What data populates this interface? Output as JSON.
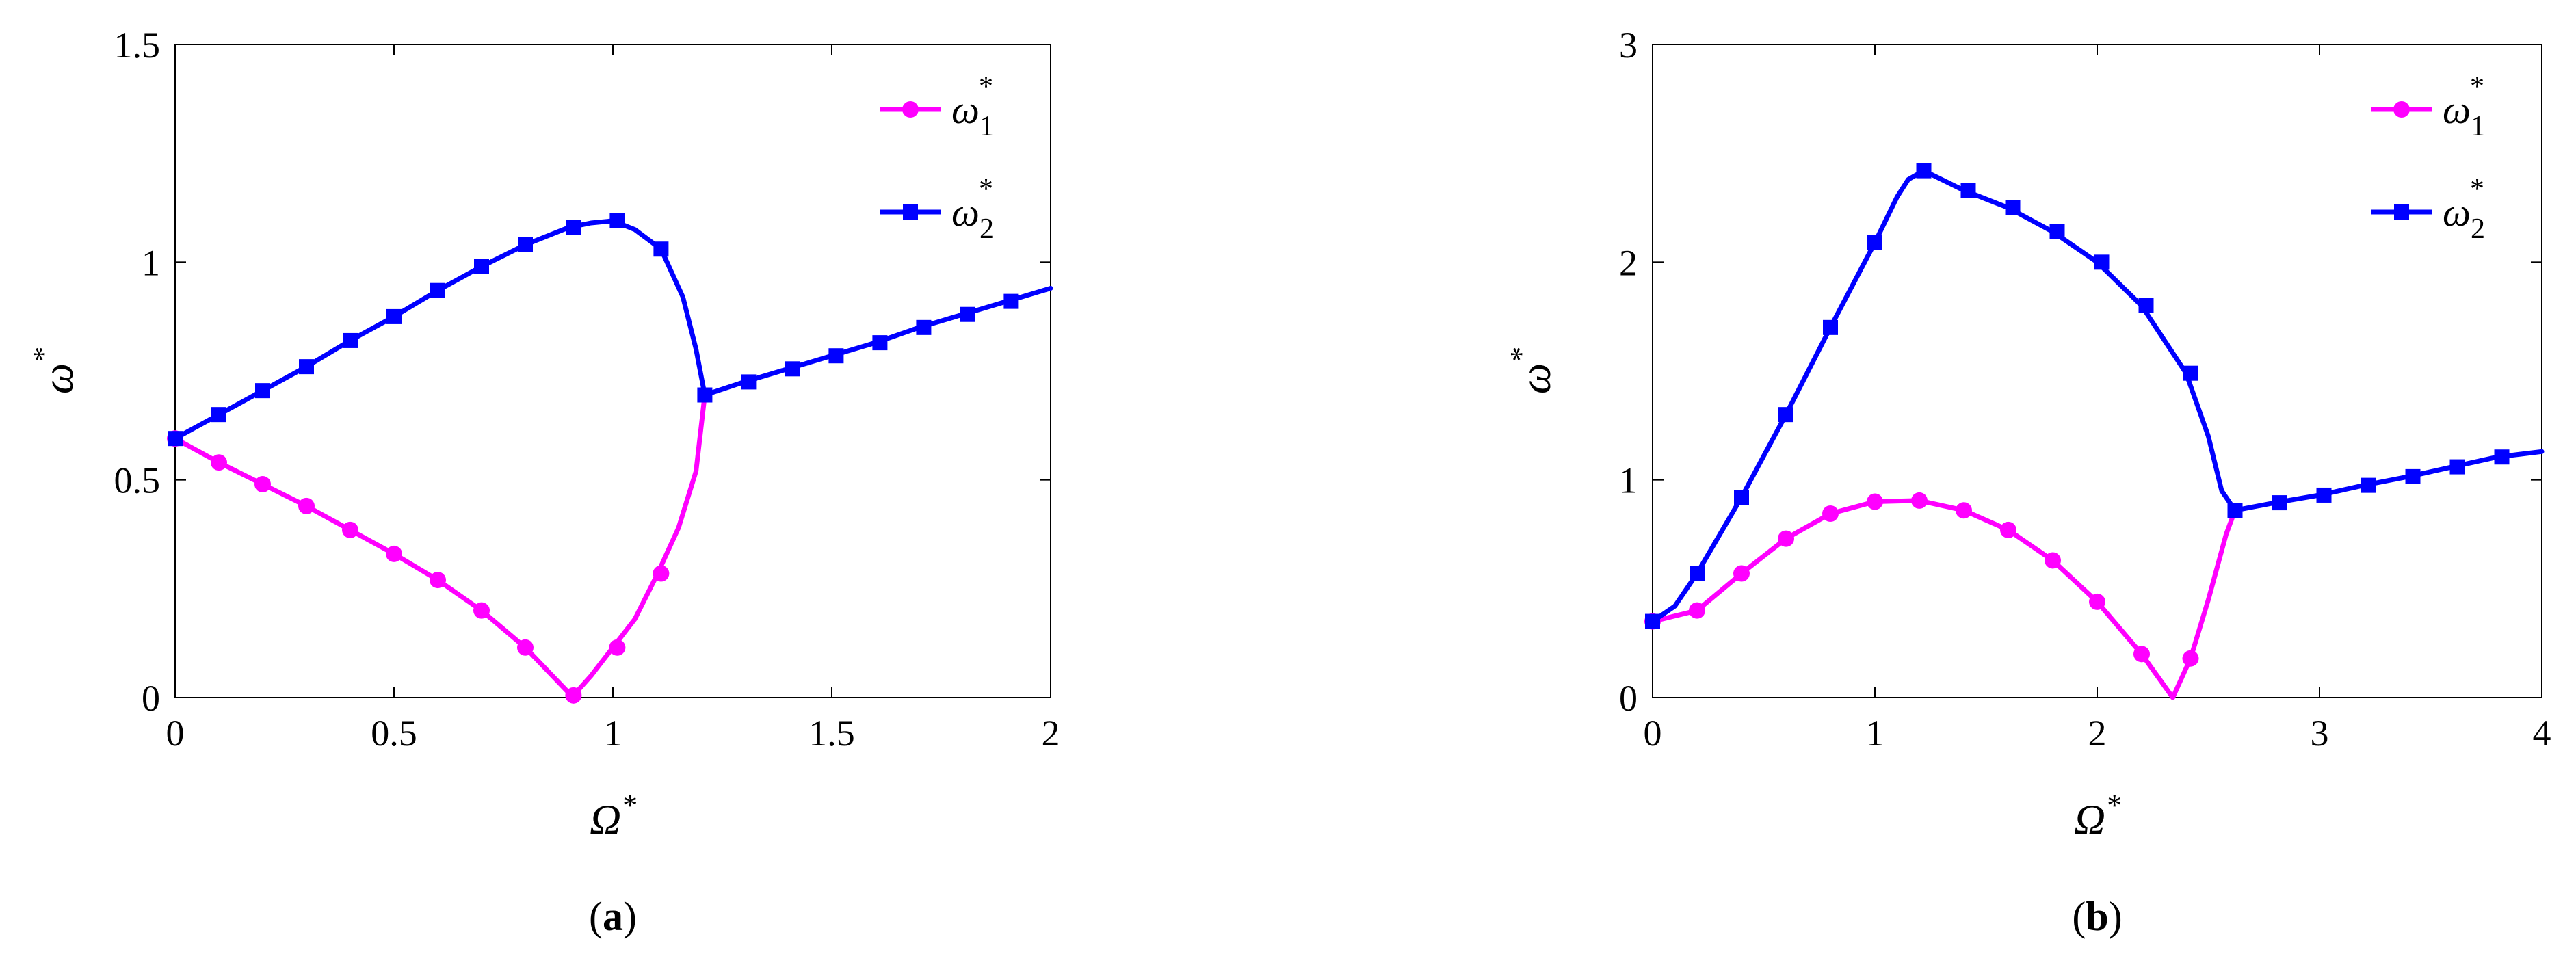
{
  "chart_data": [
    {
      "type": "line",
      "panel_label": "a",
      "caption": {
        "open": "(",
        "letter": "a",
        "close": ")"
      },
      "xlabel": {
        "base": "Ω",
        "sup": "*"
      },
      "ylabel": {
        "base": "ω",
        "sup": "*"
      },
      "xlim": [
        0,
        2
      ],
      "ylim": [
        0,
        1.5
      ],
      "xticks": [
        0,
        0.5,
        1,
        1.5,
        2
      ],
      "xtick_labels": [
        "0",
        "0.5",
        "1",
        "1.5",
        "2"
      ],
      "yticks": [
        0,
        0.5,
        1,
        1.5
      ],
      "ytick_labels": [
        "0",
        "0.5",
        "1",
        "1.5"
      ],
      "grid": false,
      "legend_position": "top-right",
      "series": [
        {
          "name": {
            "base": "ω",
            "sub": "1",
            "sup": "*"
          },
          "color": "#ff00ff",
          "marker": "circle",
          "curve": [
            [
              0,
              0.595
            ],
            [
              0.1,
              0.54
            ],
            [
              0.2,
              0.49
            ],
            [
              0.3,
              0.44
            ],
            [
              0.4,
              0.385
            ],
            [
              0.5,
              0.33
            ],
            [
              0.6,
              0.27
            ],
            [
              0.7,
              0.2
            ],
            [
              0.8,
              0.115
            ],
            [
              0.9,
              0.01
            ],
            [
              0.91,
              0.005
            ],
            [
              0.95,
              0.05
            ],
            [
              1.0,
              0.115
            ],
            [
              1.05,
              0.18
            ],
            [
              1.1,
              0.28
            ],
            [
              1.15,
              0.39
            ],
            [
              1.19,
              0.52
            ],
            [
              1.21,
              0.695
            ]
          ],
          "markers": [
            [
              0,
              0.595
            ],
            [
              0.1,
              0.54
            ],
            [
              0.2,
              0.49
            ],
            [
              0.3,
              0.44
            ],
            [
              0.4,
              0.385
            ],
            [
              0.5,
              0.33
            ],
            [
              0.6,
              0.27
            ],
            [
              0.7,
              0.2
            ],
            [
              0.8,
              0.115
            ],
            [
              0.91,
              0.005
            ],
            [
              1.01,
              0.115
            ],
            [
              1.11,
              0.285
            ]
          ]
        },
        {
          "name": {
            "base": "ω",
            "sub": "2",
            "sup": "*"
          },
          "color": "#0000ff",
          "marker": "square",
          "curve": [
            [
              0,
              0.595
            ],
            [
              0.1,
              0.65
            ],
            [
              0.2,
              0.705
            ],
            [
              0.3,
              0.76
            ],
            [
              0.4,
              0.82
            ],
            [
              0.5,
              0.875
            ],
            [
              0.6,
              0.935
            ],
            [
              0.7,
              0.99
            ],
            [
              0.8,
              1.04
            ],
            [
              0.9,
              1.08
            ],
            [
              0.95,
              1.09
            ],
            [
              1.0,
              1.095
            ],
            [
              1.05,
              1.075
            ],
            [
              1.11,
              1.03
            ],
            [
              1.16,
              0.92
            ],
            [
              1.19,
              0.8
            ],
            [
              1.21,
              0.695
            ],
            [
              1.3,
              0.725
            ],
            [
              1.4,
              0.755
            ],
            [
              1.5,
              0.785
            ],
            [
              1.6,
              0.815
            ],
            [
              1.7,
              0.85
            ],
            [
              1.8,
              0.88
            ],
            [
              1.9,
              0.91
            ],
            [
              2.0,
              0.94
            ]
          ],
          "markers": [
            [
              0,
              0.595
            ],
            [
              0.1,
              0.65
            ],
            [
              0.2,
              0.705
            ],
            [
              0.3,
              0.76
            ],
            [
              0.4,
              0.82
            ],
            [
              0.5,
              0.875
            ],
            [
              0.6,
              0.935
            ],
            [
              0.7,
              0.99
            ],
            [
              0.8,
              1.04
            ],
            [
              0.91,
              1.08
            ],
            [
              1.01,
              1.095
            ],
            [
              1.11,
              1.03
            ],
            [
              1.21,
              0.695
            ],
            [
              1.31,
              0.725
            ],
            [
              1.41,
              0.755
            ],
            [
              1.51,
              0.785
            ],
            [
              1.61,
              0.815
            ],
            [
              1.71,
              0.85
            ],
            [
              1.81,
              0.88
            ],
            [
              1.91,
              0.91
            ]
          ]
        }
      ]
    },
    {
      "type": "line",
      "panel_label": "b",
      "caption": {
        "open": "(",
        "letter": "b",
        "close": ")"
      },
      "xlabel": {
        "base": "Ω",
        "sup": "*"
      },
      "ylabel": {
        "base": "ω",
        "sup": "*"
      },
      "xlim": [
        0,
        4
      ],
      "ylim": [
        0,
        3
      ],
      "xticks": [
        0,
        1,
        2,
        3,
        4
      ],
      "xtick_labels": [
        "0",
        "1",
        "2",
        "3",
        "4"
      ],
      "yticks": [
        0,
        1,
        2,
        3
      ],
      "ytick_labels": [
        "0",
        "1",
        "2",
        "3"
      ],
      "grid": false,
      "legend_position": "top-right",
      "series": [
        {
          "name": {
            "base": "ω",
            "sub": "1",
            "sup": "*"
          },
          "color": "#ff00ff",
          "marker": "circle",
          "curve": [
            [
              0,
              0.35
            ],
            [
              0.2,
              0.4
            ],
            [
              0.4,
              0.57
            ],
            [
              0.6,
              0.73
            ],
            [
              0.8,
              0.845
            ],
            [
              1.0,
              0.9
            ],
            [
              1.2,
              0.905
            ],
            [
              1.4,
              0.86
            ],
            [
              1.6,
              0.77
            ],
            [
              1.8,
              0.63
            ],
            [
              2.0,
              0.44
            ],
            [
              2.2,
              0.2
            ],
            [
              2.34,
              0.0
            ],
            [
              2.42,
              0.18
            ],
            [
              2.5,
              0.45
            ],
            [
              2.58,
              0.75
            ],
            [
              2.62,
              0.86
            ]
          ],
          "markers": [
            [
              0,
              0.35
            ],
            [
              0.2,
              0.4
            ],
            [
              0.4,
              0.57
            ],
            [
              0.6,
              0.73
            ],
            [
              0.8,
              0.845
            ],
            [
              1.0,
              0.9
            ],
            [
              1.2,
              0.905
            ],
            [
              1.4,
              0.86
            ],
            [
              1.6,
              0.77
            ],
            [
              1.8,
              0.63
            ],
            [
              2.0,
              0.44
            ],
            [
              2.2,
              0.2
            ],
            [
              2.42,
              0.18
            ]
          ]
        },
        {
          "name": {
            "base": "ω",
            "sub": "2",
            "sup": "*"
          },
          "color": "#0000ff",
          "marker": "square",
          "curve": [
            [
              0,
              0.35
            ],
            [
              0.1,
              0.42
            ],
            [
              0.2,
              0.57
            ],
            [
              0.4,
              0.92
            ],
            [
              0.6,
              1.3
            ],
            [
              0.8,
              1.7
            ],
            [
              1.0,
              2.09
            ],
            [
              1.1,
              2.3
            ],
            [
              1.15,
              2.38
            ],
            [
              1.22,
              2.42
            ],
            [
              1.4,
              2.33
            ],
            [
              1.6,
              2.25
            ],
            [
              1.8,
              2.14
            ],
            [
              2.0,
              2.0
            ],
            [
              2.2,
              1.8
            ],
            [
              2.4,
              1.49
            ],
            [
              2.5,
              1.2
            ],
            [
              2.56,
              0.95
            ],
            [
              2.62,
              0.86
            ],
            [
              2.8,
              0.895
            ],
            [
              3.0,
              0.93
            ],
            [
              3.2,
              0.975
            ],
            [
              3.4,
              1.015
            ],
            [
              3.6,
              1.06
            ],
            [
              3.8,
              1.105
            ],
            [
              4.0,
              1.13
            ]
          ],
          "markers": [
            [
              0,
              0.35
            ],
            [
              0.2,
              0.57
            ],
            [
              0.4,
              0.92
            ],
            [
              0.6,
              1.3
            ],
            [
              0.8,
              1.7
            ],
            [
              1.0,
              2.09
            ],
            [
              1.22,
              2.42
            ],
            [
              1.42,
              2.33
            ],
            [
              1.62,
              2.25
            ],
            [
              1.82,
              2.14
            ],
            [
              2.02,
              2.0
            ],
            [
              2.22,
              1.8
            ],
            [
              2.42,
              1.49
            ],
            [
              2.62,
              0.86
            ],
            [
              2.82,
              0.895
            ],
            [
              3.02,
              0.93
            ],
            [
              3.22,
              0.975
            ],
            [
              3.42,
              1.015
            ],
            [
              3.62,
              1.06
            ],
            [
              3.82,
              1.105
            ]
          ]
        }
      ]
    }
  ]
}
